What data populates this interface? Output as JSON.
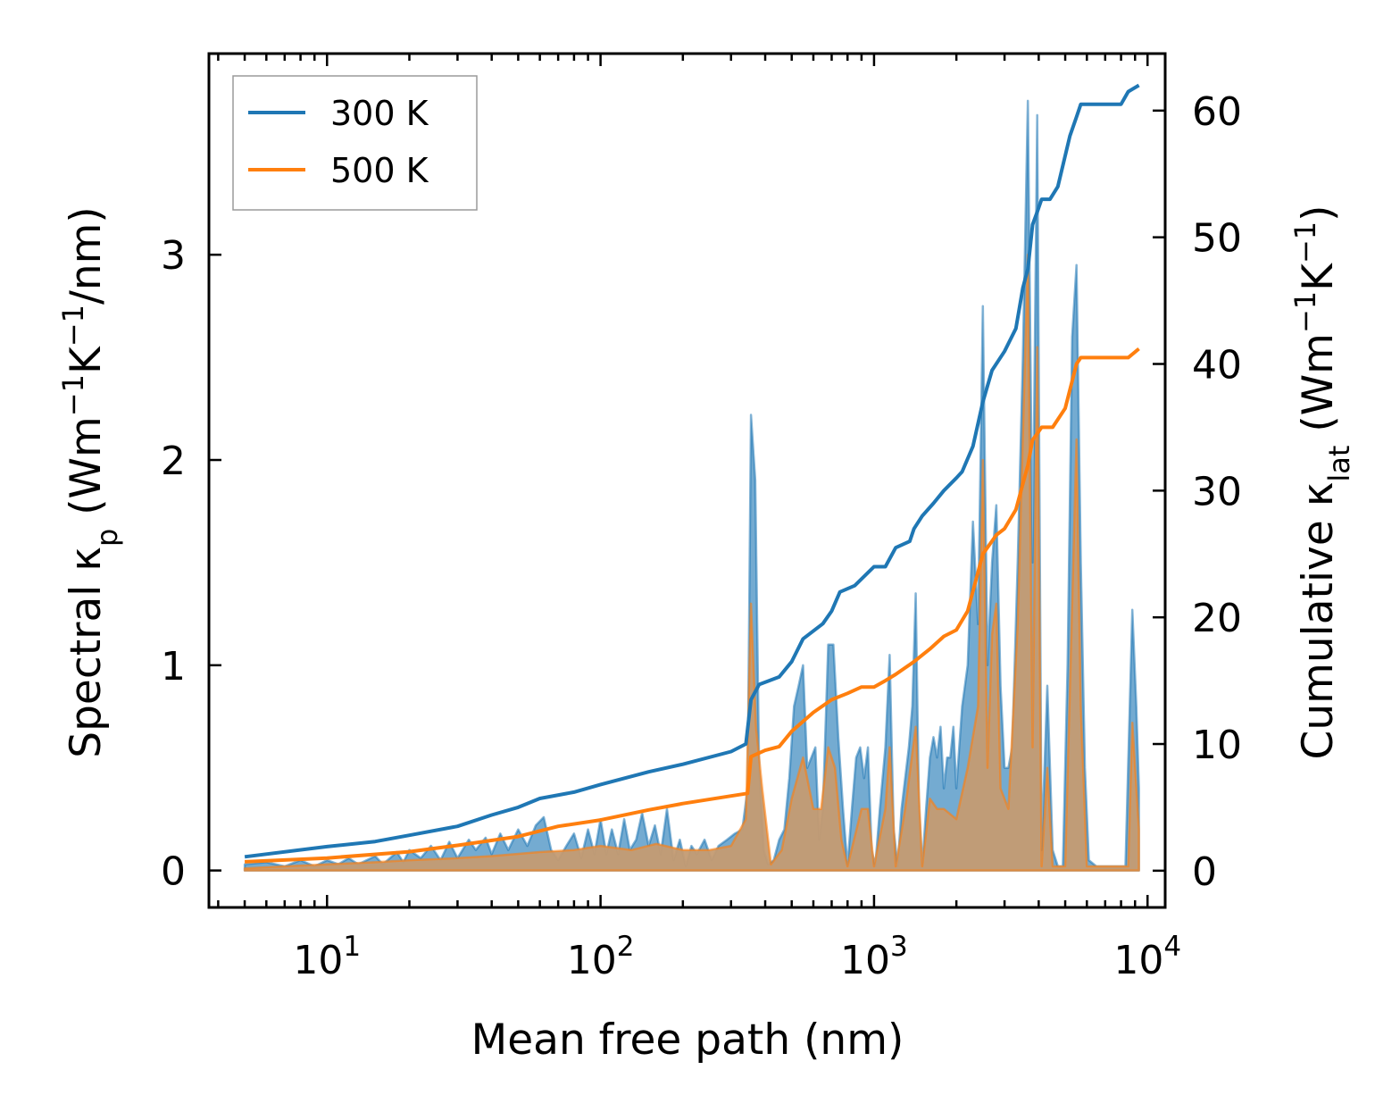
{
  "chart_data": {
    "type": "line",
    "xscale": "log",
    "xlabel": "Mean free path (nm)",
    "ylabel_left": {
      "prefix": "Spectral κ",
      "sub": "p",
      "suffix": " (Wm",
      "sup1": "−1",
      "mid": "K",
      "sup2": "−1",
      "tail": "/nm)"
    },
    "ylabel_right": {
      "prefix": "Cumulative κ",
      "sub": "lat",
      "suffix": " (Wm",
      "sup1": "−1",
      "mid": "K",
      "sup2": "−1",
      "tail": ")"
    },
    "xlim": [
      3.7,
      11600
    ],
    "ylim_left": [
      -0.18,
      3.98
    ],
    "ylim_right": [
      -2.9,
      64.5
    ],
    "x_ticks": [
      {
        "value": 10,
        "base": "10",
        "exp": "1"
      },
      {
        "value": 100,
        "base": "10",
        "exp": "2"
      },
      {
        "value": 1000,
        "base": "10",
        "exp": "3"
      },
      {
        "value": 10000,
        "base": "10",
        "exp": "4"
      }
    ],
    "y_left_ticks": [
      "0",
      "1",
      "2",
      "3"
    ],
    "y_right_ticks": [
      "0",
      "10",
      "20",
      "30",
      "40",
      "50",
      "60"
    ],
    "legend": {
      "position": "upper-left",
      "entries": [
        "300 K",
        "500 K"
      ]
    },
    "colors": {
      "s300": "#1f77b4",
      "s500": "#ff7f0e",
      "fill300": "#1f77b4",
      "fill500": "#ff7f0e",
      "fill_overlap": "#c49b72"
    },
    "spectral_300": [
      [
        5,
        0.03
      ],
      [
        6,
        0.04
      ],
      [
        7,
        0.02
      ],
      [
        8,
        0.05
      ],
      [
        9,
        0.02
      ],
      [
        10,
        0.05
      ],
      [
        11,
        0.03
      ],
      [
        12,
        0.06
      ],
      [
        13,
        0.03
      ],
      [
        15,
        0.07
      ],
      [
        16,
        0.03
      ],
      [
        18,
        0.09
      ],
      [
        19,
        0.04
      ],
      [
        20,
        0.1
      ],
      [
        22,
        0.06
      ],
      [
        24,
        0.12
      ],
      [
        26,
        0.05
      ],
      [
        28,
        0.14
      ],
      [
        30,
        0.06
      ],
      [
        33,
        0.15
      ],
      [
        35,
        0.1
      ],
      [
        38,
        0.16
      ],
      [
        40,
        0.08
      ],
      [
        43,
        0.18
      ],
      [
        46,
        0.1
      ],
      [
        50,
        0.2
      ],
      [
        54,
        0.12
      ],
      [
        58,
        0.22
      ],
      [
        62,
        0.26
      ],
      [
        66,
        0.1
      ],
      [
        70,
        0.05
      ],
      [
        75,
        0.12
      ],
      [
        80,
        0.18
      ],
      [
        85,
        0.06
      ],
      [
        90,
        0.2
      ],
      [
        95,
        0.08
      ],
      [
        100,
        0.25
      ],
      [
        105,
        0.08
      ],
      [
        110,
        0.2
      ],
      [
        116,
        0.08
      ],
      [
        122,
        0.25
      ],
      [
        128,
        0.1
      ],
      [
        135,
        0.15
      ],
      [
        142,
        0.28
      ],
      [
        150,
        0.12
      ],
      [
        158,
        0.22
      ],
      [
        166,
        0.08
      ],
      [
        175,
        0.3
      ],
      [
        185,
        0.05
      ],
      [
        195,
        0.15
      ],
      [
        205,
        0.02
      ],
      [
        215,
        0.12
      ],
      [
        225,
        0.08
      ],
      [
        240,
        0.15
      ],
      [
        255,
        0.05
      ],
      [
        270,
        0.12
      ],
      [
        290,
        0.15
      ],
      [
        310,
        0.18
      ],
      [
        330,
        0.2
      ],
      [
        345,
        0.4
      ],
      [
        355,
        2.22
      ],
      [
        368,
        1.9
      ],
      [
        380,
        0.5
      ],
      [
        395,
        0.1
      ],
      [
        410,
        0.03
      ],
      [
        430,
        0.05
      ],
      [
        450,
        0.15
      ],
      [
        470,
        0.2
      ],
      [
        490,
        0.45
      ],
      [
        510,
        0.8
      ],
      [
        530,
        0.9
      ],
      [
        550,
        1.0
      ],
      [
        570,
        0.5
      ],
      [
        590,
        0.55
      ],
      [
        610,
        0.6
      ],
      [
        630,
        0.15
      ],
      [
        650,
        0.3
      ],
      [
        680,
        1.1
      ],
      [
        710,
        1.1
      ],
      [
        740,
        0.65
      ],
      [
        770,
        0.3
      ],
      [
        800,
        0.02
      ],
      [
        830,
        0.3
      ],
      [
        860,
        0.55
      ],
      [
        890,
        0.6
      ],
      [
        920,
        0.45
      ],
      [
        950,
        0.6
      ],
      [
        980,
        0.1
      ],
      [
        1010,
        0.02
      ],
      [
        1050,
        0.3
      ],
      [
        1100,
        0.6
      ],
      [
        1140,
        1.05
      ],
      [
        1180,
        0.2
      ],
      [
        1220,
        0.02
      ],
      [
        1260,
        0.3
      ],
      [
        1300,
        0.45
      ],
      [
        1340,
        0.6
      ],
      [
        1380,
        0.8
      ],
      [
        1420,
        1.35
      ],
      [
        1460,
        0.3
      ],
      [
        1500,
        0.02
      ],
      [
        1550,
        0.3
      ],
      [
        1600,
        0.55
      ],
      [
        1650,
        0.65
      ],
      [
        1700,
        0.55
      ],
      [
        1750,
        0.7
      ],
      [
        1800,
        0.4
      ],
      [
        1850,
        0.55
      ],
      [
        1900,
        0.55
      ],
      [
        1950,
        0.7
      ],
      [
        2000,
        0.4
      ],
      [
        2100,
        0.8
      ],
      [
        2200,
        1.0
      ],
      [
        2300,
        1.7
      ],
      [
        2400,
        1.2
      ],
      [
        2500,
        2.75
      ],
      [
        2600,
        1.0
      ],
      [
        2700,
        1.5
      ],
      [
        2800,
        1.78
      ],
      [
        2900,
        0.9
      ],
      [
        3000,
        0.5
      ],
      [
        3100,
        0.5
      ],
      [
        3200,
        0.6
      ],
      [
        3350,
        1.5
      ],
      [
        3500,
        2.5
      ],
      [
        3650,
        3.75
      ],
      [
        3800,
        1.5
      ],
      [
        3950,
        3.68
      ],
      [
        4100,
        0.1
      ],
      [
        4300,
        0.9
      ],
      [
        4500,
        0.1
      ],
      [
        4700,
        0.02
      ],
      [
        4900,
        0.02
      ],
      [
        5100,
        1.0
      ],
      [
        5300,
        2.6
      ],
      [
        5500,
        2.95
      ],
      [
        5700,
        1.5
      ],
      [
        5900,
        0.5
      ],
      [
        6100,
        0.05
      ],
      [
        6500,
        0.02
      ],
      [
        7500,
        0.02
      ],
      [
        8300,
        0.02
      ],
      [
        8800,
        1.27
      ],
      [
        9100,
        0.8
      ],
      [
        9300,
        0.4
      ]
    ],
    "spectral_500": [
      [
        5,
        0.01
      ],
      [
        7,
        0.02
      ],
      [
        10,
        0.03
      ],
      [
        15,
        0.04
      ],
      [
        20,
        0.05
      ],
      [
        30,
        0.06
      ],
      [
        40,
        0.07
      ],
      [
        60,
        0.09
      ],
      [
        80,
        0.1
      ],
      [
        100,
        0.12
      ],
      [
        130,
        0.1
      ],
      [
        160,
        0.13
      ],
      [
        200,
        0.1
      ],
      [
        250,
        0.1
      ],
      [
        300,
        0.12
      ],
      [
        340,
        0.25
      ],
      [
        355,
        1.3
      ],
      [
        370,
        0.7
      ],
      [
        390,
        0.4
      ],
      [
        420,
        0.03
      ],
      [
        460,
        0.1
      ],
      [
        500,
        0.35
      ],
      [
        550,
        0.55
      ],
      [
        600,
        0.3
      ],
      [
        640,
        0.3
      ],
      [
        680,
        0.6
      ],
      [
        720,
        0.5
      ],
      [
        760,
        0.15
      ],
      [
        800,
        0.02
      ],
      [
        900,
        0.3
      ],
      [
        950,
        0.3
      ],
      [
        1000,
        0.02
      ],
      [
        1100,
        0.3
      ],
      [
        1140,
        0.6
      ],
      [
        1200,
        0.02
      ],
      [
        1300,
        0.3
      ],
      [
        1420,
        0.7
      ],
      [
        1500,
        0.02
      ],
      [
        1600,
        0.35
      ],
      [
        1700,
        0.3
      ],
      [
        1800,
        0.3
      ],
      [
        2000,
        0.25
      ],
      [
        2200,
        0.5
      ],
      [
        2400,
        0.8
      ],
      [
        2500,
        2.0
      ],
      [
        2600,
        0.5
      ],
      [
        2700,
        1.15
      ],
      [
        2800,
        1.3
      ],
      [
        2900,
        0.4
      ],
      [
        3100,
        0.3
      ],
      [
        3350,
        1.2
      ],
      [
        3650,
        3.0
      ],
      [
        3800,
        0.6
      ],
      [
        3950,
        2.55
      ],
      [
        4100,
        0.02
      ],
      [
        4300,
        0.5
      ],
      [
        4500,
        0.02
      ],
      [
        5000,
        0.02
      ],
      [
        5500,
        2.1
      ],
      [
        5700,
        0.8
      ],
      [
        6000,
        0.02
      ],
      [
        8500,
        0.02
      ],
      [
        8800,
        0.72
      ],
      [
        9300,
        0.2
      ]
    ],
    "cumulative_300": [
      [
        5,
        1.1
      ],
      [
        10,
        1.9
      ],
      [
        15,
        2.3
      ],
      [
        20,
        2.8
      ],
      [
        30,
        3.5
      ],
      [
        40,
        4.4
      ],
      [
        50,
        5.0
      ],
      [
        60,
        5.7
      ],
      [
        80,
        6.2
      ],
      [
        100,
        6.8
      ],
      [
        150,
        7.8
      ],
      [
        200,
        8.4
      ],
      [
        300,
        9.4
      ],
      [
        340,
        10.0
      ],
      [
        355,
        13.5
      ],
      [
        380,
        14.7
      ],
      [
        450,
        15.3
      ],
      [
        500,
        16.5
      ],
      [
        550,
        18.3
      ],
      [
        650,
        19.5
      ],
      [
        700,
        20.5
      ],
      [
        750,
        22.0
      ],
      [
        850,
        22.5
      ],
      [
        1000,
        24.0
      ],
      [
        1100,
        24.0
      ],
      [
        1200,
        25.5
      ],
      [
        1350,
        26.0
      ],
      [
        1400,
        27.0
      ],
      [
        1500,
        28.0
      ],
      [
        1650,
        29.0
      ],
      [
        1800,
        30.0
      ],
      [
        2000,
        31.0
      ],
      [
        2100,
        31.5
      ],
      [
        2300,
        33.5
      ],
      [
        2500,
        37.0
      ],
      [
        2700,
        39.5
      ],
      [
        3000,
        41.0
      ],
      [
        3300,
        42.8
      ],
      [
        3500,
        46.0
      ],
      [
        3650,
        47.5
      ],
      [
        3800,
        51.0
      ],
      [
        3950,
        52.0
      ],
      [
        4100,
        53.0
      ],
      [
        4400,
        53.0
      ],
      [
        4700,
        54.0
      ],
      [
        5200,
        58.0
      ],
      [
        5500,
        59.5
      ],
      [
        5700,
        60.5
      ],
      [
        6000,
        60.5
      ],
      [
        8000,
        60.5
      ],
      [
        8500,
        61.5
      ],
      [
        9300,
        62.0
      ]
    ],
    "cumulative_500": [
      [
        5,
        0.7
      ],
      [
        10,
        1.0
      ],
      [
        20,
        1.5
      ],
      [
        30,
        2.0
      ],
      [
        50,
        2.7
      ],
      [
        70,
        3.5
      ],
      [
        100,
        4.0
      ],
      [
        150,
        4.8
      ],
      [
        200,
        5.3
      ],
      [
        300,
        5.9
      ],
      [
        345,
        6.1
      ],
      [
        355,
        9.0
      ],
      [
        400,
        9.5
      ],
      [
        450,
        9.8
      ],
      [
        500,
        11.0
      ],
      [
        600,
        12.5
      ],
      [
        700,
        13.5
      ],
      [
        800,
        14.0
      ],
      [
        900,
        14.5
      ],
      [
        1000,
        14.5
      ],
      [
        1100,
        15.0
      ],
      [
        1200,
        15.5
      ],
      [
        1400,
        16.5
      ],
      [
        1600,
        17.5
      ],
      [
        1800,
        18.5
      ],
      [
        2000,
        19.0
      ],
      [
        2200,
        20.5
      ],
      [
        2500,
        25.0
      ],
      [
        2800,
        26.5
      ],
      [
        3000,
        27.0
      ],
      [
        3300,
        28.5
      ],
      [
        3650,
        32.0
      ],
      [
        3800,
        34.0
      ],
      [
        3950,
        34.5
      ],
      [
        4100,
        35.0
      ],
      [
        4500,
        35.0
      ],
      [
        5000,
        36.5
      ],
      [
        5500,
        40.0
      ],
      [
        5700,
        40.5
      ],
      [
        6000,
        40.5
      ],
      [
        8500,
        40.5
      ],
      [
        9300,
        41.2
      ]
    ]
  }
}
